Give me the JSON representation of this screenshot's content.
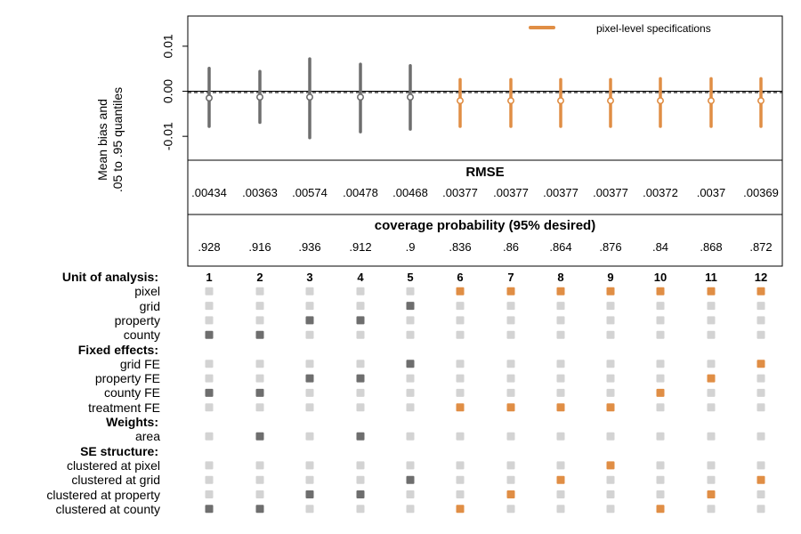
{
  "chart_data": {
    "type": "specification_curve",
    "legend": {
      "label": "pixel-level specifications",
      "color": "#e08e45",
      "position": "top-right"
    },
    "bias_panel": {
      "ylabel_lines": [
        "Mean bias and",
        ".05 to .95 quantiles"
      ],
      "ylim": [
        -0.0153,
        0.0167
      ],
      "yticks": [
        -0.01,
        0.0,
        0.01
      ],
      "ytick_labels": [
        "-0.01",
        "0.00",
        "0.01"
      ],
      "reference_line": 0.0,
      "specs": [
        1,
        2,
        3,
        4,
        5,
        6,
        7,
        8,
        9,
        10,
        11,
        12
      ],
      "mean": [
        -0.0015,
        -0.0013,
        -0.0013,
        -0.0013,
        -0.0013,
        -0.0021,
        -0.0021,
        -0.0021,
        -0.0021,
        -0.0021,
        -0.0021,
        -0.0021
      ],
      "q05": [
        -0.0078,
        -0.0069,
        -0.0103,
        -0.009,
        -0.0084,
        -0.0078,
        -0.0078,
        -0.0078,
        -0.0078,
        -0.0078,
        -0.0078,
        -0.0078
      ],
      "q95": [
        0.0051,
        0.0044,
        0.0072,
        0.006,
        0.0057,
        0.0026,
        0.0026,
        0.0026,
        0.0026,
        0.0028,
        0.0028,
        0.0028
      ],
      "is_pixel_level": [
        false,
        false,
        false,
        false,
        false,
        true,
        true,
        true,
        true,
        true,
        true,
        true
      ]
    },
    "rmse": {
      "title": "RMSE",
      "values": [
        ".00434",
        ".00363",
        ".00574",
        ".00478",
        ".00468",
        ".00377",
        ".00377",
        ".00377",
        ".00377",
        ".00372",
        ".0037",
        ".00369"
      ]
    },
    "coverage": {
      "title": "coverage probability (95% desired)",
      "values": [
        ".928",
        ".916",
        ".936",
        ".912",
        ".9",
        ".836",
        ".86",
        ".864",
        ".876",
        ".84",
        ".868",
        ".872"
      ]
    },
    "specification_matrix": {
      "spec_numbers": [
        "1",
        "2",
        "3",
        "4",
        "5",
        "6",
        "7",
        "8",
        "9",
        "10",
        "11",
        "12"
      ],
      "sections": [
        {
          "header": "Unit of analysis:",
          "rows": [
            {
              "label": "pixel",
              "active": [
                6,
                7,
                8,
                9,
                10,
                11,
                12
              ]
            },
            {
              "label": "grid",
              "active": [
                5
              ]
            },
            {
              "label": "property",
              "active": [
                3,
                4
              ]
            },
            {
              "label": "county",
              "active": [
                1,
                2
              ]
            }
          ]
        },
        {
          "header": "Fixed effects:",
          "rows": [
            {
              "label": "grid FE",
              "active": [
                5,
                12
              ]
            },
            {
              "label": "property FE",
              "active": [
                3,
                4,
                11
              ]
            },
            {
              "label": "county FE",
              "active": [
                1,
                2,
                10
              ]
            },
            {
              "label": "treatment FE",
              "active": [
                6,
                7,
                8,
                9
              ]
            }
          ]
        },
        {
          "header": "Weights:",
          "rows": [
            {
              "label": "area",
              "active": [
                2,
                4
              ]
            }
          ]
        },
        {
          "header": "SE structure:",
          "rows": [
            {
              "label": "clustered at pixel",
              "active": [
                9
              ]
            },
            {
              "label": "clustered at grid",
              "active": [
                5,
                8,
                12
              ]
            },
            {
              "label": "clustered at property",
              "active": [
                3,
                4,
                7,
                11
              ]
            },
            {
              "label": "clustered at county",
              "active": [
                1,
                2,
                6,
                10
              ]
            }
          ]
        }
      ]
    },
    "colors": {
      "pixel_level": "#e08e45",
      "other": "#6e6e6e",
      "inactive": "#d3d3d3"
    }
  }
}
